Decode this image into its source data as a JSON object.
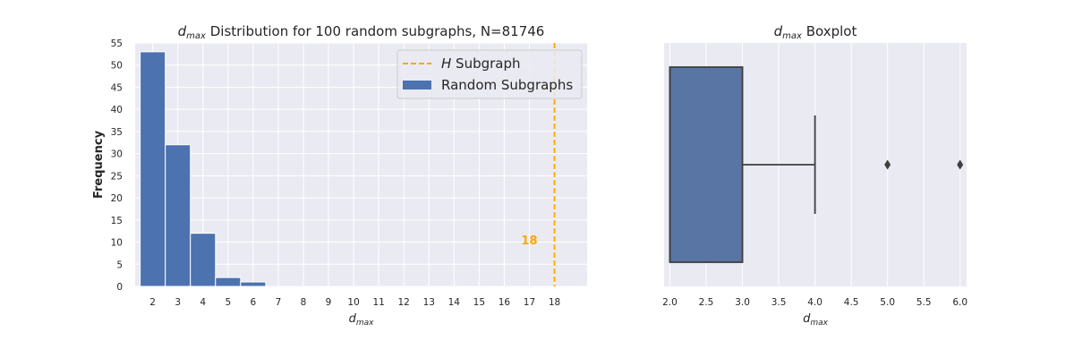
{
  "chart_data": [
    {
      "type": "bar",
      "title_main": "d",
      "title_sub": "max",
      "title_rest": " Distribution for 100 random subgraphs, N=81746",
      "xlabel_main": "d",
      "xlabel_sub": "max",
      "ylabel": "Frequency",
      "xlim": [
        1.3,
        19.3
      ],
      "ylim": [
        0,
        55
      ],
      "grid": true,
      "legend_position": "top-right",
      "xticks": [
        2,
        3,
        4,
        5,
        6,
        7,
        8,
        9,
        10,
        11,
        12,
        13,
        14,
        15,
        16,
        17,
        18
      ],
      "yticks": [
        0,
        5,
        10,
        15,
        20,
        25,
        30,
        35,
        40,
        45,
        50,
        55
      ],
      "bins": [
        {
          "start": 1.5,
          "end": 2.5,
          "value": 53
        },
        {
          "start": 2.5,
          "end": 3.5,
          "value": 32
        },
        {
          "start": 3.5,
          "end": 4.5,
          "value": 12
        },
        {
          "start": 4.5,
          "end": 5.5,
          "value": 2
        },
        {
          "start": 5.5,
          "end": 6.5,
          "value": 1
        }
      ],
      "bar_color": "#4c72b0",
      "reference_line": {
        "x": 18,
        "color": "#ffa500",
        "label_value": "18",
        "label_x": 17,
        "label_y": 10.5
      },
      "legend": [
        {
          "label_italic": "H",
          "label_rest": " Subgraph",
          "kind": "dashed-line",
          "color": "#ffa500"
        },
        {
          "label": "Random Subgraphs",
          "kind": "patch",
          "color": "#4c72b0"
        }
      ]
    },
    {
      "type": "boxplot",
      "title_main": "d",
      "title_sub": "max",
      "title_rest": " Boxplot",
      "xlabel_main": "d",
      "xlabel_sub": "max",
      "xlim": [
        1.92,
        6.09
      ],
      "xticks": [
        "2.0",
        "2.5",
        "3.0",
        "3.5",
        "4.0",
        "4.5",
        "5.0",
        "5.5",
        "6.0"
      ],
      "grid": true,
      "box": {
        "q1": 2.0,
        "median": 2.0,
        "q3": 3.0,
        "whisker_low": 2.0,
        "whisker_high": 4.0
      },
      "outliers": [
        5.0,
        6.0
      ],
      "box_color": "#5875a4"
    }
  ]
}
